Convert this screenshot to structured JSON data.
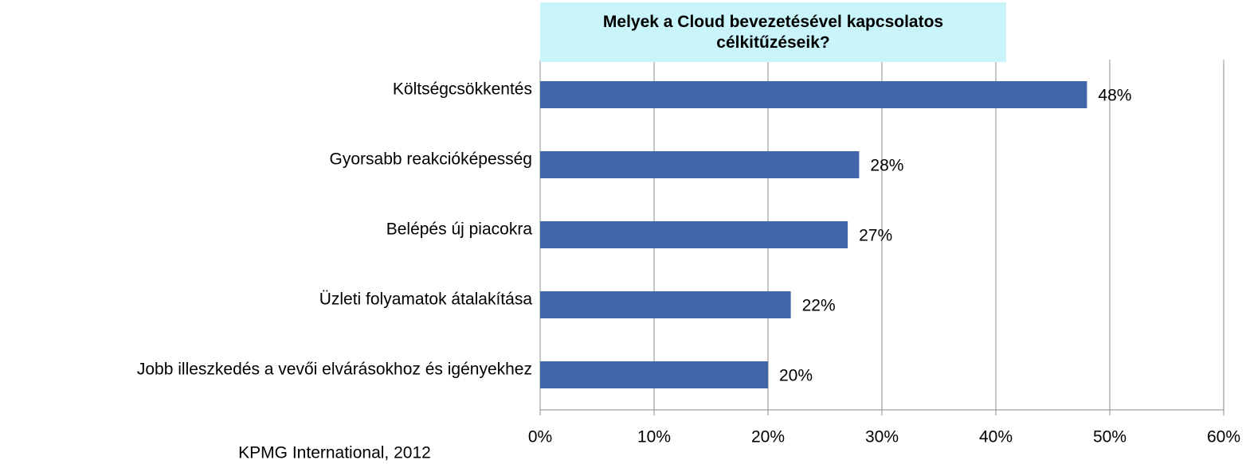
{
  "chart_data": {
    "type": "barh",
    "title": "Melyek a Cloud bevezetésével kapcsolatos célkitűzéseik?",
    "categories": [
      "Költségcsökkentés",
      "Gyorsabb reakcióképesség",
      "Belépés új piacokra",
      "Üzleti folyamatok átalakítása",
      "Jobb illeszkedés a vevői elvárásokhoz és igényekhez"
    ],
    "values": [
      48,
      28,
      27,
      22,
      20
    ],
    "value_labels": [
      "48%",
      "28%",
      "27%",
      "22%",
      "20%"
    ],
    "color": "#4065a9",
    "xlim": [
      0,
      60
    ],
    "xticks": [
      {
        "value": 0,
        "label": "0%"
      },
      {
        "value": 10,
        "label": "10%"
      },
      {
        "value": 20,
        "label": "20%"
      },
      {
        "value": 30,
        "label": "30%"
      },
      {
        "value": 40,
        "label": "40%"
      },
      {
        "value": 50,
        "label": "50%"
      },
      {
        "value": 60,
        "label": "60%"
      }
    ],
    "grid": true,
    "source": "KPMG International, 2012"
  }
}
